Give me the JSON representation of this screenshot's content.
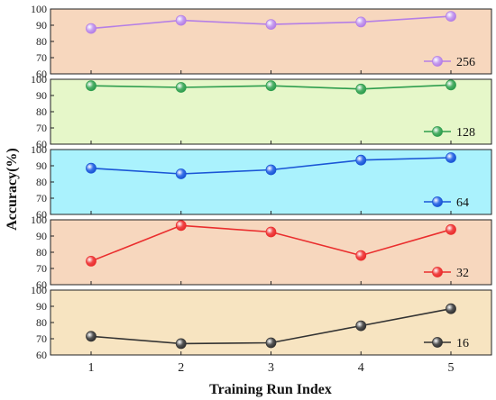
{
  "chart_data": {
    "type": "line",
    "xlabel": "Training Run Index",
    "ylabel": "Accuracy(%)",
    "x": [
      1,
      2,
      3,
      4,
      5
    ],
    "x_ticks": [
      "1",
      "2",
      "3",
      "4",
      "5"
    ],
    "ylim": [
      60,
      100
    ],
    "y_ticks": [
      "60",
      "70",
      "80",
      "90",
      "100"
    ],
    "legend_position": "bottom-right",
    "series": [
      {
        "name": "256",
        "values": [
          88,
          93,
          90.5,
          92,
          95.5
        ],
        "line_color": "#b57fe6",
        "marker_color": "#c7a0f0",
        "panel_color": "#f7d7be"
      },
      {
        "name": "128",
        "values": [
          96,
          95,
          96,
          94,
          96.5
        ],
        "line_color": "#2e9e4e",
        "marker_color": "#4fb069",
        "panel_color": "#e6f7c9"
      },
      {
        "name": "64",
        "values": [
          88.5,
          85,
          87.5,
          93.5,
          95
        ],
        "line_color": "#1a56d6",
        "marker_color": "#3a73e8",
        "panel_color": "#aaf2fd"
      },
      {
        "name": "32",
        "values": [
          74.5,
          96.5,
          92.5,
          78,
          94
        ],
        "line_color": "#ea2e2e",
        "marker_color": "#f04848",
        "panel_color": "#f7d7be"
      },
      {
        "name": "16",
        "values": [
          71.5,
          67,
          67.5,
          78,
          88.5
        ],
        "line_color": "#333333",
        "marker_color": "#555555",
        "panel_color": "#f7e4c1"
      }
    ]
  }
}
